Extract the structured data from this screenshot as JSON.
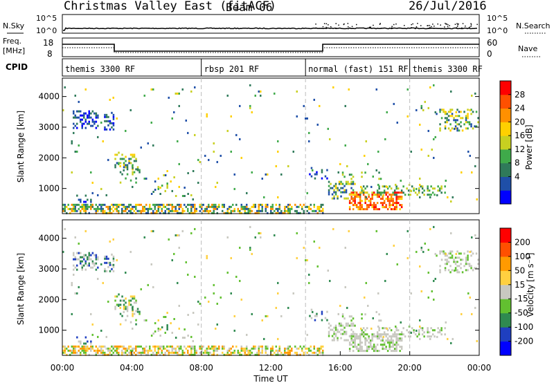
{
  "header": {
    "title": "Christmas Valley East (fitACF)",
    "beam": "Beam 06",
    "date": "26/Jul/2016"
  },
  "strips": {
    "nsky_label": "N.Sky",
    "nsky_ticks": [
      "10^5",
      "10^0"
    ],
    "nsearch_label": "N.Search",
    "nsearch_ticks": [
      "10^5",
      "10^0"
    ],
    "freq_label": "Freq.",
    "freq_unit": "[MHz]",
    "freq_ticks": [
      "18",
      "8"
    ],
    "nave_label": "Nave",
    "nave_ticks": [
      "60",
      "0"
    ],
    "cpid_label": "CPID",
    "cpid_segments": [
      {
        "label": "themis 3300 RF",
        "start": 0,
        "end": 8
      },
      {
        "label": "rbsp 201 RF",
        "start": 8,
        "end": 14
      },
      {
        "label": "normal (fast) 151 RF",
        "start": 14,
        "end": 20
      },
      {
        "label": "themis 3300 RF",
        "start": 20,
        "end": 24
      }
    ]
  },
  "chart_data": [
    {
      "type": "heatmap",
      "panel": "power",
      "ylabel": "Slant Range [km]",
      "yticks": [
        "4000",
        "3000",
        "2000",
        "1000"
      ],
      "ylim": [
        180,
        4600
      ],
      "xlim": [
        0,
        24
      ],
      "colorbar_label": "Power [dB]",
      "colorbar_ticks": [
        "28",
        "24",
        "20",
        "16",
        "12",
        "8",
        "4"
      ],
      "colorbar_colors": [
        "#0000ff",
        "#1f4fa8",
        "#2f7a5a",
        "#3faa4a",
        "#c8d020",
        "#ffd000",
        "#ff9000",
        "#ff5000",
        "#ff0000"
      ]
    },
    {
      "type": "heatmap",
      "panel": "velocity",
      "ylabel": "Slant Range [km]",
      "yticks": [
        "4000",
        "3000",
        "2000",
        "1000"
      ],
      "ylim": [
        180,
        4600
      ],
      "xlim": [
        0,
        24
      ],
      "xlabel": "Time UT",
      "xticks": [
        "00:00",
        "04:00",
        "08:00",
        "12:00",
        "16:00",
        "20:00",
        "00:00"
      ],
      "colorbar_label": "Velocity [m s⁻¹]",
      "colorbar_ticks": [
        "200",
        "100",
        "50",
        "15",
        "-15",
        "-50",
        "-100",
        "-200"
      ],
      "colorbar_colors": [
        "#0000ff",
        "#1f3fc0",
        "#2f8a50",
        "#62c030",
        "#c8c8c0",
        "#ffd040",
        "#ff9a00",
        "#ff5000",
        "#ff0000"
      ],
      "ground_scatter_color": "#c8c8c0"
    }
  ]
}
